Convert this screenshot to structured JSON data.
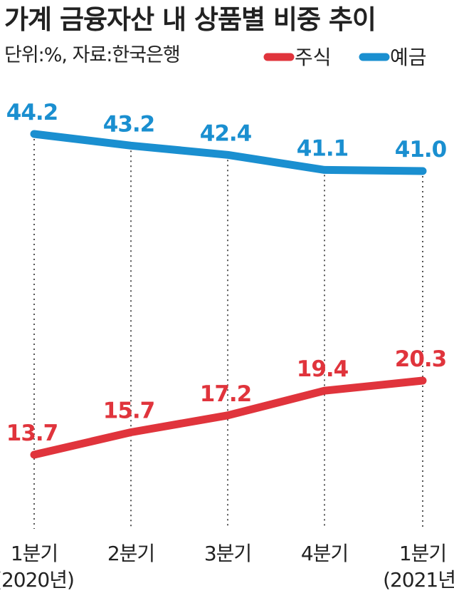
{
  "chart_data": {
    "type": "line",
    "title": "가계 금융자산 내 상품별 비중 추이",
    "subtitle": "단위:%, 자료:한국은행",
    "categories": [
      {
        "label": "1분기",
        "sub": "(2020년)"
      },
      {
        "label": "2분기",
        "sub": ""
      },
      {
        "label": "3분기",
        "sub": ""
      },
      {
        "label": "4분기",
        "sub": ""
      },
      {
        "label": "1분기",
        "sub": "(2021년)"
      }
    ],
    "series": [
      {
        "name": "예금",
        "color": "#1a8fd0",
        "values": [
          44.2,
          43.2,
          42.4,
          41.1,
          41.0
        ]
      },
      {
        "name": "주식",
        "color": "#e0343c",
        "values": [
          13.7,
          15.7,
          17.2,
          19.4,
          20.3
        ]
      }
    ],
    "legend": [
      {
        "name": "주식",
        "color": "#e0343c"
      },
      {
        "name": "예금",
        "color": "#1a8fd0"
      }
    ],
    "grid": "vertical-dotted",
    "legend_position": "top-right"
  }
}
